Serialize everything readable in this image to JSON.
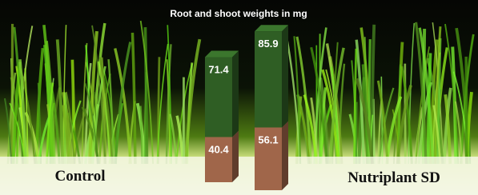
{
  "chart_data": {
    "type": "stacked-bar-3d",
    "title": "Root and shoot weights in mg",
    "categories": [
      "Control",
      "Nutriplant SD"
    ],
    "series": [
      {
        "color": "#a0664a",
        "values": [
          40.4,
          56.1
        ]
      },
      {
        "color": "#2f5e24",
        "values": [
          71.4,
          85.9
        ]
      }
    ]
  }
}
